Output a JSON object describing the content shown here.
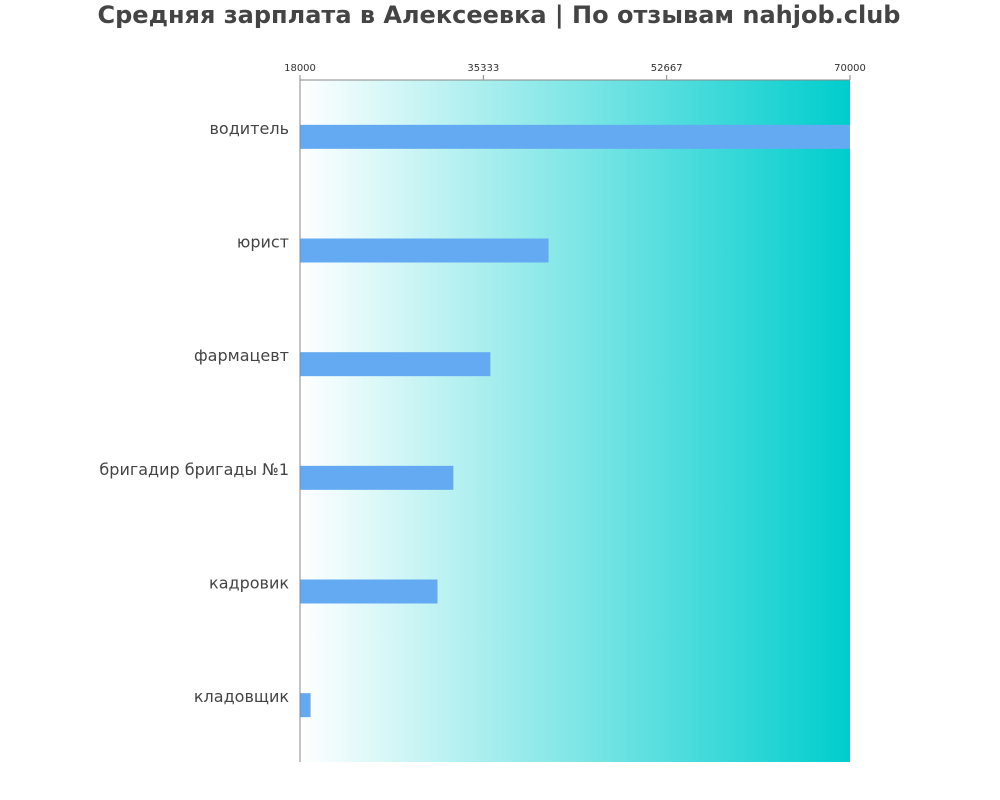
{
  "chart_data": {
    "type": "bar",
    "orientation": "horizontal",
    "title": "Средняя зарплата в Алексеевка | По отзывам nahjob.club",
    "xlabel": "",
    "ylabel": "",
    "xlim": [
      18000,
      70000
    ],
    "x_ticks": [
      "18000",
      "35333",
      "52667",
      "70000"
    ],
    "categories": [
      "водитель",
      "юрист",
      "фармацевт",
      "бригадир бригады №1",
      "кадровик",
      "кладовщик"
    ],
    "values": [
      70000,
      41500,
      36000,
      32500,
      31000,
      19000
    ],
    "grid": false,
    "legend": "none",
    "colors": {
      "bar": "#64aaf2",
      "background_start": "#ffffff",
      "background_end": "#00cdcd",
      "axis": "#888888",
      "text": "#444444"
    }
  }
}
